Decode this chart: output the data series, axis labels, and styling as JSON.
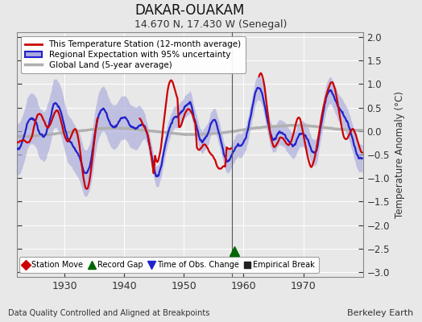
{
  "title": "DAKAR-OUAKAM",
  "subtitle": "14.670 N, 17.430 W (Senegal)",
  "ylabel": "Temperature Anomaly (°C)",
  "xlabel_note": "Data Quality Controlled and Aligned at Breakpoints",
  "credit": "Berkeley Earth",
  "xlim": [
    1922,
    1980
  ],
  "ylim": [
    -3.1,
    2.1
  ],
  "yticks": [
    -3,
    -2.5,
    -2,
    -1.5,
    -1,
    -0.5,
    0,
    0.5,
    1,
    1.5,
    2
  ],
  "xticks": [
    1930,
    1940,
    1950,
    1960,
    1970
  ],
  "regional_color": "#2222cc",
  "regional_fill_color": "#aaaadd",
  "station_color": "#cc0000",
  "global_color": "#b0b0b0",
  "background_color": "#e8e8e8",
  "plot_bg_color": "#e8e8e8",
  "gap_line_x": 1958.0,
  "marker_record_gap_x": 1958.5,
  "marker_record_gap_y": -2.55,
  "legend_items": [
    {
      "label": "This Temperature Station (12-month average)",
      "color": "#cc0000",
      "lw": 2
    },
    {
      "label": "Regional Expectation with 95% uncertainty",
      "color": "#2222cc",
      "lw": 2
    },
    {
      "label": "Global Land (5-year average)",
      "color": "#b0b0b0",
      "lw": 2.5
    }
  ],
  "legend_markers": [
    {
      "label": "Station Move",
      "color": "#cc0000",
      "marker": "D",
      "size": 6
    },
    {
      "label": "Record Gap",
      "color": "#006600",
      "marker": "^",
      "size": 7
    },
    {
      "label": "Time of Obs. Change",
      "color": "#2222cc",
      "marker": "v",
      "size": 7
    },
    {
      "label": "Empirical Break",
      "color": "#222222",
      "marker": "s",
      "size": 6
    }
  ]
}
